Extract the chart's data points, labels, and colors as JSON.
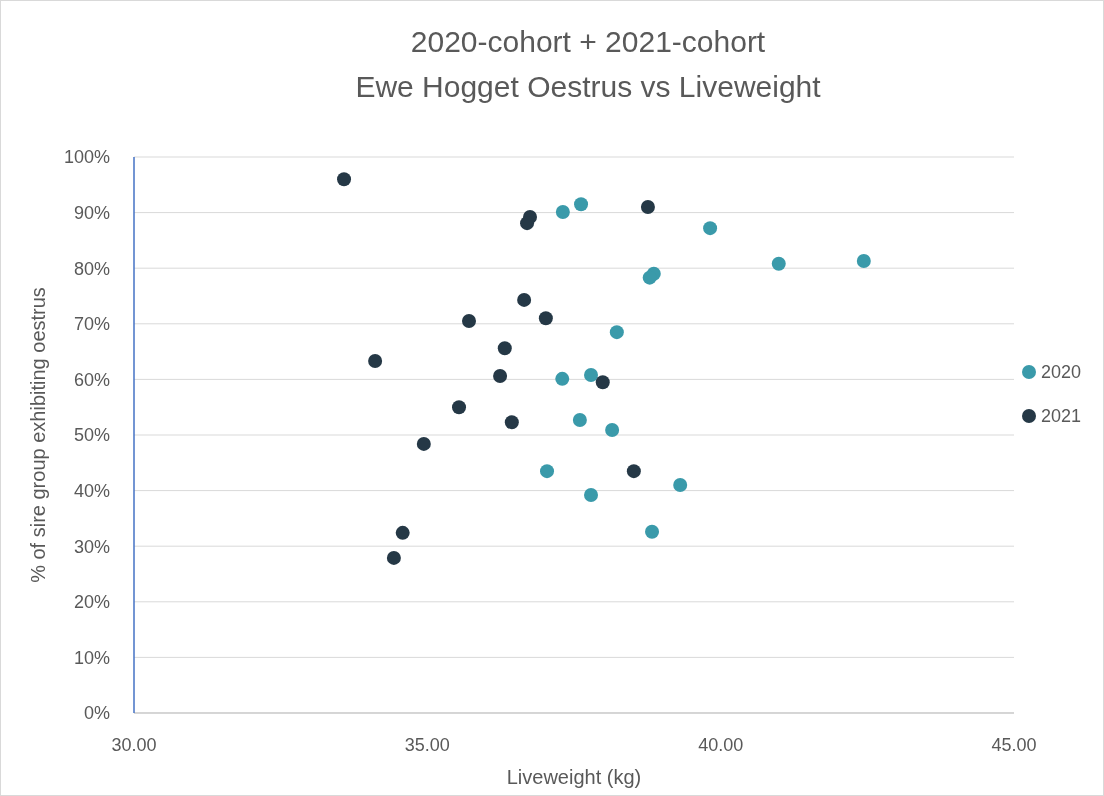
{
  "chart_data": {
    "type": "scatter",
    "title": "2020-cohort + 2021-cohort\nEwe Hogget Oestrus vs Liveweight",
    "xlabel": "Liveweight (kg)",
    "ylabel": "% of sire group exhibiting oestrus",
    "xlim": [
      30,
      45
    ],
    "xticks": [
      {
        "value": 30,
        "label": "30.00"
      },
      {
        "value": 35,
        "label": "35.00"
      },
      {
        "value": 40,
        "label": "40.00"
      },
      {
        "value": 45,
        "label": "45.00"
      }
    ],
    "ylim": [
      0,
      100
    ],
    "yticks": [
      {
        "value": 0,
        "label": "0%"
      },
      {
        "value": 10,
        "label": "10%"
      },
      {
        "value": 20,
        "label": "20%"
      },
      {
        "value": 30,
        "label": "30%"
      },
      {
        "value": 40,
        "label": "40%"
      },
      {
        "value": 50,
        "label": "50%"
      },
      {
        "value": 60,
        "label": "60%"
      },
      {
        "value": 70,
        "label": "70%"
      },
      {
        "value": 80,
        "label": "80%"
      },
      {
        "value": 90,
        "label": "90%"
      },
      {
        "value": 100,
        "label": "100%"
      }
    ],
    "grid": "y",
    "legend": "right",
    "marker": "circle",
    "series": [
      {
        "name": "2020",
        "color": "#3a9aaa",
        "x": [
          37.62,
          37.31,
          39.82,
          38.86,
          38.79,
          40.99,
          42.44,
          38.23,
          37.3,
          37.79,
          37.6,
          38.15,
          37.04,
          37.79,
          39.31,
          38.83
        ],
        "values": [
          91.5,
          90.1,
          87.2,
          79,
          78.3,
          80.8,
          81.3,
          68.5,
          60.1,
          60.8,
          52.7,
          50.9,
          43.5,
          39.2,
          41,
          32.6
        ]
      },
      {
        "name": "2021",
        "color": "#253846",
        "x": [
          33.58,
          36.75,
          36.7,
          38.76,
          36.65,
          35.71,
          37.02,
          36.32,
          34.11,
          36.24,
          37.99,
          35.54,
          36.44,
          34.94,
          38.52,
          34.58,
          34.43
        ],
        "values": [
          96,
          89.2,
          88.1,
          91,
          74.3,
          70.5,
          71,
          65.6,
          63.3,
          60.6,
          59.5,
          55,
          52.3,
          48.4,
          43.5,
          32.4,
          27.9
        ]
      }
    ]
  }
}
